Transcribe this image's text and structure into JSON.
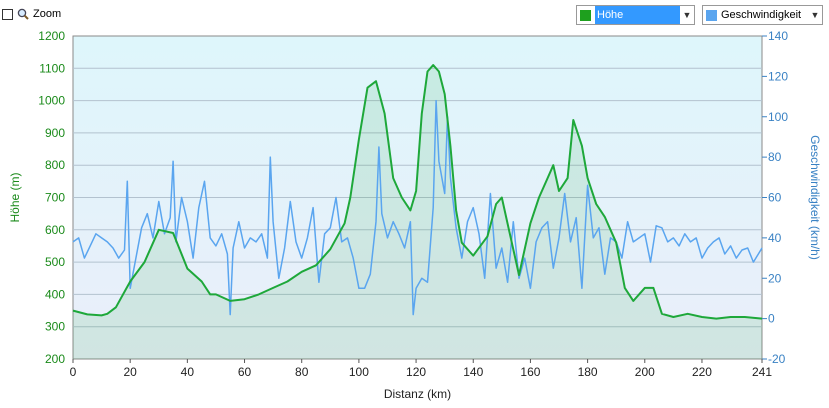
{
  "toolbar": {
    "zoom_label": "Zoom"
  },
  "selects": {
    "left": {
      "value": "Höhe",
      "color": "#1ea01e"
    },
    "right": {
      "value": "Geschwindigkeit",
      "color": "#5aa5ef"
    }
  },
  "colors": {
    "elevation": "#1ea83a",
    "speed": "#5aa5ef",
    "left_axis_text": "#1a8a1a",
    "right_axis_text": "#3a82c4"
  },
  "icons": {
    "zoom": "magnifier-icon",
    "dropdown": "chevron-down-icon"
  },
  "chart_data": {
    "type": "line",
    "xlabel": "Distanz  (km)",
    "ylabel_left": "Höhe (m)",
    "ylabel_right": "Geschwindigkeit (km/h)",
    "xlim": [
      0,
      241
    ],
    "ylim_left": [
      200,
      1200
    ],
    "ylim_right": [
      -20,
      140
    ],
    "x_ticks": [
      "0",
      "20",
      "40",
      "60",
      "80",
      "100",
      "120",
      "140",
      "160",
      "180",
      "200",
      "220",
      "241"
    ],
    "y_left_ticks": [
      "200",
      "300",
      "400",
      "500",
      "600",
      "700",
      "800",
      "900",
      "1000",
      "1100",
      "1200"
    ],
    "y_right_ticks": [
      "-20",
      "0",
      "20",
      "40",
      "60",
      "80",
      "100",
      "120",
      "140"
    ],
    "grid": true,
    "series": [
      {
        "axis": "left",
        "x": [
          0,
          5,
          10,
          12,
          15,
          20,
          25,
          30,
          35,
          40,
          45,
          48,
          50,
          55,
          60,
          65,
          70,
          75,
          80,
          85,
          90,
          95,
          97,
          100,
          103,
          106,
          109,
          112,
          115,
          118,
          120,
          122,
          124,
          126,
          128,
          130,
          132,
          134,
          136,
          140,
          145,
          148,
          150,
          153,
          156,
          160,
          163,
          166,
          168,
          170,
          173,
          175,
          178,
          180,
          183,
          186,
          190,
          193,
          196,
          200,
          203,
          206,
          210,
          215,
          220,
          225,
          230,
          235,
          241
        ],
        "values": [
          350,
          338,
          335,
          340,
          360,
          440,
          500,
          600,
          590,
          480,
          440,
          400,
          400,
          380,
          385,
          400,
          420,
          440,
          470,
          490,
          540,
          620,
          700,
          880,
          1040,
          1060,
          960,
          760,
          700,
          660,
          720,
          960,
          1090,
          1110,
          1090,
          1020,
          860,
          660,
          560,
          520,
          580,
          680,
          700,
          580,
          460,
          620,
          700,
          760,
          800,
          720,
          760,
          940,
          860,
          760,
          680,
          640,
          560,
          420,
          380,
          420,
          420,
          340,
          330,
          340,
          330,
          325,
          330,
          330,
          325
        ]
      },
      {
        "axis": "right",
        "x": [
          0,
          2,
          4,
          6,
          8,
          10,
          12,
          14,
          16,
          18,
          19,
          20,
          22,
          24,
          26,
          28,
          30,
          32,
          34,
          35,
          36,
          38,
          40,
          42,
          44,
          46,
          48,
          50,
          52,
          54,
          55,
          56,
          58,
          60,
          62,
          64,
          66,
          68,
          69,
          70,
          72,
          74,
          76,
          78,
          80,
          82,
          84,
          86,
          88,
          90,
          92,
          94,
          96,
          98,
          100,
          102,
          104,
          106,
          107,
          108,
          110,
          112,
          114,
          116,
          118,
          119,
          120,
          122,
          124,
          126,
          127,
          128,
          130,
          131,
          132,
          134,
          136,
          138,
          140,
          142,
          144,
          146,
          148,
          150,
          152,
          154,
          156,
          158,
          160,
          162,
          164,
          166,
          168,
          170,
          172,
          174,
          176,
          178,
          180,
          182,
          184,
          186,
          188,
          190,
          192,
          194,
          196,
          198,
          200,
          202,
          204,
          206,
          208,
          210,
          212,
          214,
          216,
          218,
          220,
          222,
          224,
          226,
          228,
          230,
          232,
          234,
          236,
          238,
          241
        ],
        "values": [
          38,
          40,
          30,
          36,
          42,
          40,
          38,
          35,
          30,
          34,
          68,
          15,
          30,
          45,
          52,
          40,
          58,
          42,
          50,
          78,
          38,
          60,
          48,
          30,
          55,
          68,
          40,
          36,
          42,
          32,
          2,
          35,
          48,
          35,
          40,
          38,
          42,
          30,
          80,
          48,
          20,
          35,
          58,
          38,
          30,
          40,
          55,
          18,
          42,
          45,
          60,
          38,
          40,
          30,
          15,
          15,
          22,
          48,
          85,
          52,
          40,
          48,
          42,
          35,
          48,
          2,
          15,
          20,
          18,
          55,
          108,
          78,
          62,
          100,
          70,
          45,
          30,
          48,
          55,
          42,
          20,
          62,
          25,
          35,
          18,
          48,
          20,
          30,
          15,
          38,
          45,
          48,
          25,
          40,
          62,
          38,
          50,
          15,
          66,
          40,
          45,
          22,
          40,
          38,
          30,
          48,
          38,
          40,
          42,
          28,
          46,
          45,
          38,
          40,
          36,
          42,
          38,
          40,
          30,
          35,
          38,
          40,
          32,
          36,
          30,
          34,
          35,
          28,
          35
        ]
      }
    ]
  }
}
